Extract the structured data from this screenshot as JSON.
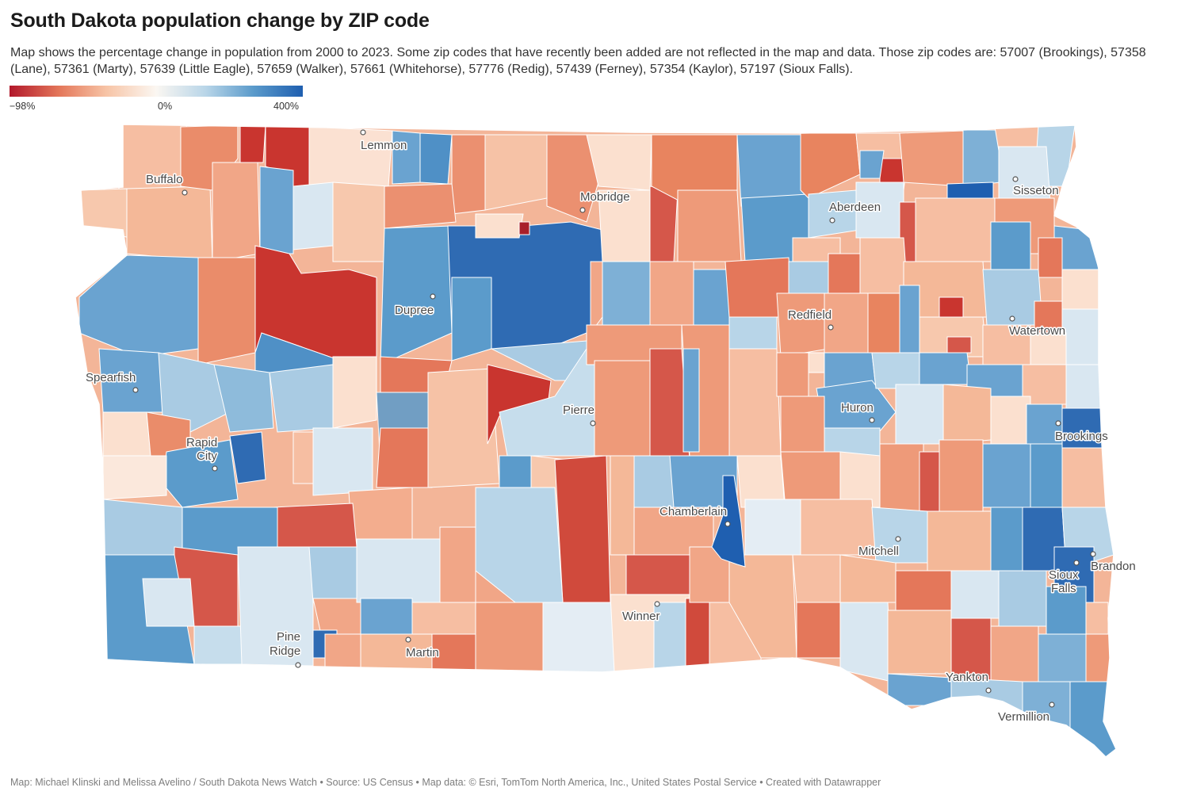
{
  "title": "South Dakota population change by ZIP code",
  "description": "Map shows the percentage change in population from 2000 to 2023. Some zip codes that have recently been added are not reflected in the map and data. Those zip codes are: 57007 (Brookings), 57358 (Lane), 57361 (Marty), 57639 (Little Eagle), 57659 (Walker), 57661 (Whitehorse), 57776 (Redig), 57439 (Ferney), 57354 (Kaylor), 57197 (Sioux Falls).",
  "legend": {
    "min_label": "−98%",
    "mid_label": "0%",
    "max_label": "400%",
    "colors": [
      "#b2182b",
      "#e4775a",
      "#f7c4a6",
      "#fbf7f2",
      "#b8d5e8",
      "#5b9bcb",
      "#1f5fb0"
    ]
  },
  "cities": [
    {
      "name": "Lemmon",
      "lines": [
        "Lemmon"
      ]
    },
    {
      "name": "Buffalo",
      "lines": [
        "Buffalo"
      ]
    },
    {
      "name": "Mobridge",
      "lines": [
        "Mobridge"
      ]
    },
    {
      "name": "Aberdeen",
      "lines": [
        "Aberdeen"
      ]
    },
    {
      "name": "Sisseton",
      "lines": [
        "Sisseton"
      ]
    },
    {
      "name": "Dupree",
      "lines": [
        "Dupree"
      ]
    },
    {
      "name": "Redfield",
      "lines": [
        "Redfield"
      ]
    },
    {
      "name": "Watertown",
      "lines": [
        "Watertown"
      ]
    },
    {
      "name": "Spearfish",
      "lines": [
        "Spearfish"
      ]
    },
    {
      "name": "Pierre",
      "lines": [
        "Pierre"
      ]
    },
    {
      "name": "Huron",
      "lines": [
        "Huron"
      ]
    },
    {
      "name": "Brookings",
      "lines": [
        "Brookings"
      ]
    },
    {
      "name": "Rapid City",
      "lines": [
        "Rapid",
        "City"
      ]
    },
    {
      "name": "Chamberlain",
      "lines": [
        "Chamberlain"
      ]
    },
    {
      "name": "Mitchell",
      "lines": [
        "Mitchell"
      ]
    },
    {
      "name": "Brandon",
      "lines": [
        "Brandon"
      ]
    },
    {
      "name": "Sioux Falls",
      "lines": [
        "Sioux",
        "Falls"
      ]
    },
    {
      "name": "Winner",
      "lines": [
        "Winner"
      ]
    },
    {
      "name": "Pine Ridge",
      "lines": [
        "Pine",
        "Ridge"
      ]
    },
    {
      "name": "Martin",
      "lines": [
        "Martin"
      ]
    },
    {
      "name": "Yankton",
      "lines": [
        "Yankton"
      ]
    },
    {
      "name": "Vermillion",
      "lines": [
        "Vermillion"
      ]
    }
  ],
  "source": "Map: Michael Klinski and Melissa Avelino / South Dakota News Watch • Source: US Census • Map data: © Esri, TomTom North America, Inc., United States Postal Service  • Created with Datawrapper"
}
